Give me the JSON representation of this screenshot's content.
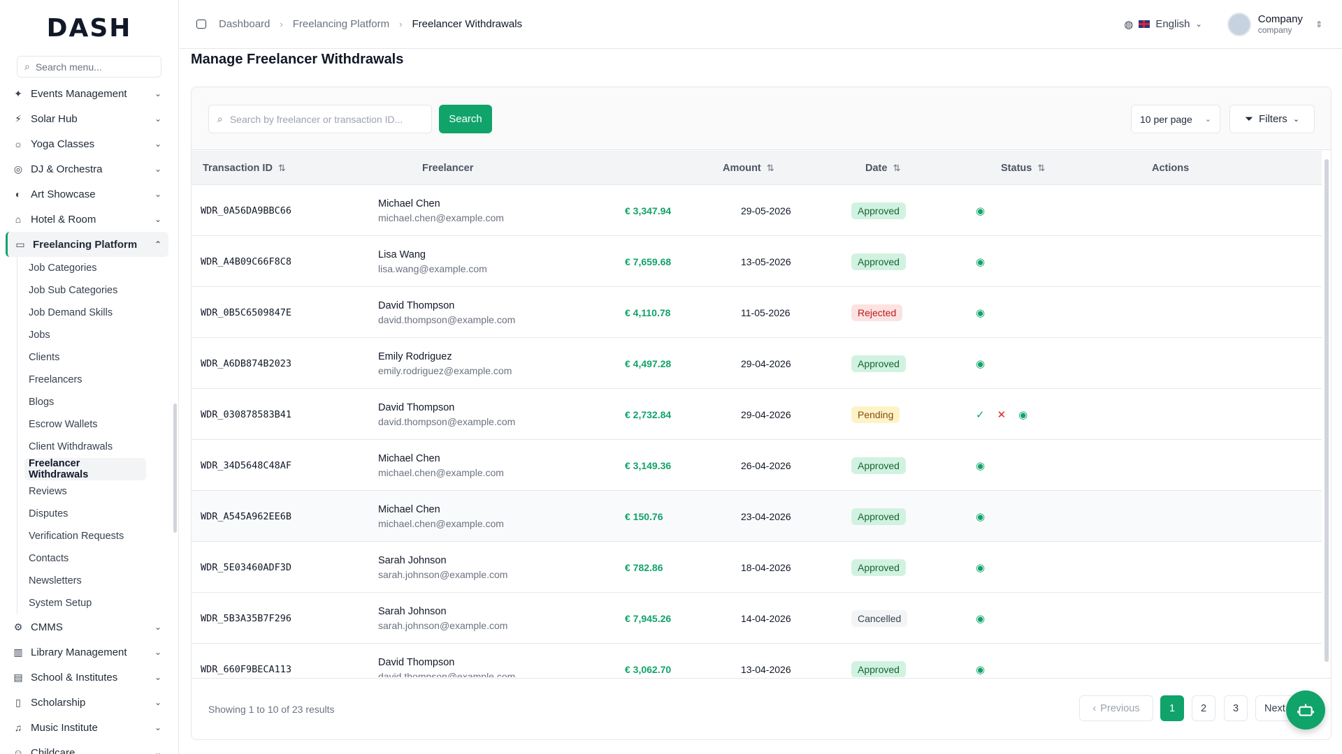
{
  "app": {
    "logo": "DASH"
  },
  "sidebar": {
    "search_placeholder": "Search menu...",
    "items": [
      {
        "label": "Events Management",
        "icon": "party-icon"
      },
      {
        "label": "Solar Hub",
        "icon": "zap-icon"
      },
      {
        "label": "Yoga Classes",
        "icon": "sun-icon"
      },
      {
        "label": "DJ & Orchestra",
        "icon": "disc-icon"
      },
      {
        "label": "Art Showcase",
        "icon": "palette-icon"
      },
      {
        "label": "Hotel & Room",
        "icon": "hotel-icon"
      },
      {
        "label": "Freelancing Platform",
        "icon": "laptop-icon"
      }
    ],
    "sub_items": [
      "Job Categories",
      "Job Sub Categories",
      "Job Demand Skills",
      "Jobs",
      "Clients",
      "Freelancers",
      "Blogs",
      "Escrow Wallets",
      "Client Withdrawals",
      "Freelancer Withdrawals",
      "Reviews",
      "Disputes",
      "Verification Requests",
      "Contacts",
      "Newsletters",
      "System Setup"
    ],
    "items_after": [
      {
        "label": "CMMS",
        "icon": "gear-icon"
      },
      {
        "label": "Library Management",
        "icon": "library-icon"
      },
      {
        "label": "School & Institutes",
        "icon": "school-icon"
      },
      {
        "label": "Scholarship",
        "icon": "book-icon"
      },
      {
        "label": "Music Institute",
        "icon": "music-icon"
      },
      {
        "label": "Childcare",
        "icon": "baby-icon"
      }
    ]
  },
  "header": {
    "breadcrumbs": [
      "Dashboard",
      "Freelancing Platform",
      "Freelancer Withdrawals"
    ],
    "language": "English",
    "company_name": "Company",
    "company_sub": "company"
  },
  "page": {
    "title": "Manage Freelancer Withdrawals"
  },
  "toolbar": {
    "search_placeholder": "Search by freelancer or transaction ID...",
    "search_button": "Search",
    "per_page": "10 per page",
    "filters": "Filters"
  },
  "table": {
    "columns": [
      "Transaction ID",
      "Freelancer",
      "Amount",
      "Date",
      "Status",
      "Actions"
    ],
    "rows": [
      {
        "id": "WDR_0A56DA9BBC66",
        "name": "Michael Chen",
        "email": "michael.chen@example.com",
        "amount": "€ 3,347.94",
        "date": "29-05-2026",
        "status": "Approved",
        "status_key": "approved"
      },
      {
        "id": "WDR_A4B09C66F8C8",
        "name": "Lisa Wang",
        "email": "lisa.wang@example.com",
        "amount": "€ 7,659.68",
        "date": "13-05-2026",
        "status": "Approved",
        "status_key": "approved"
      },
      {
        "id": "WDR_0B5C6509847E",
        "name": "David Thompson",
        "email": "david.thompson@example.com",
        "amount": "€ 4,110.78",
        "date": "11-05-2026",
        "status": "Rejected",
        "status_key": "rejected"
      },
      {
        "id": "WDR_A6DB874B2023",
        "name": "Emily Rodriguez",
        "email": "emily.rodriguez@example.com",
        "amount": "€ 4,497.28",
        "date": "29-04-2026",
        "status": "Approved",
        "status_key": "approved"
      },
      {
        "id": "WDR_030878583B41",
        "name": "David Thompson",
        "email": "david.thompson@example.com",
        "amount": "€ 2,732.84",
        "date": "29-04-2026",
        "status": "Pending",
        "status_key": "pending"
      },
      {
        "id": "WDR_34D5648C48AF",
        "name": "Michael Chen",
        "email": "michael.chen@example.com",
        "amount": "€ 3,149.36",
        "date": "26-04-2026",
        "status": "Approved",
        "status_key": "approved"
      },
      {
        "id": "WDR_A545A962EE6B",
        "name": "Michael Chen",
        "email": "michael.chen@example.com",
        "amount": "€ 150.76",
        "date": "23-04-2026",
        "status": "Approved",
        "status_key": "approved"
      },
      {
        "id": "WDR_5E03460ADF3D",
        "name": "Sarah Johnson",
        "email": "sarah.johnson@example.com",
        "amount": "€ 782.86",
        "date": "18-04-2026",
        "status": "Approved",
        "status_key": "approved"
      },
      {
        "id": "WDR_5B3A35B7F296",
        "name": "Sarah Johnson",
        "email": "sarah.johnson@example.com",
        "amount": "€ 7,945.26",
        "date": "14-04-2026",
        "status": "Cancelled",
        "status_key": "cancelled"
      },
      {
        "id": "WDR_660F9BECA113",
        "name": "David Thompson",
        "email": "david.thompson@example.com",
        "amount": "€ 3,062.70",
        "date": "13-04-2026",
        "status": "Approved",
        "status_key": "approved"
      }
    ]
  },
  "pagination": {
    "showing": "Showing 1 to 10 of 23 results",
    "previous": "Previous",
    "pages": [
      "1",
      "2",
      "3"
    ],
    "next": "Next"
  },
  "colors": {
    "accent": "#10a36a"
  }
}
